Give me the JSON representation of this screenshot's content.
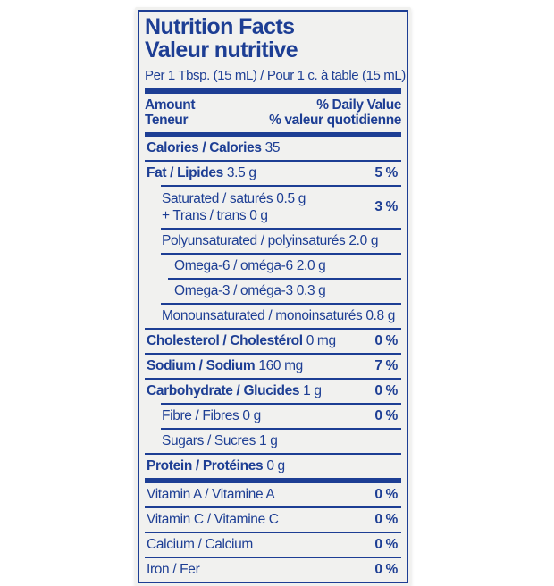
{
  "label": {
    "colors": {
      "blue": "#1d3e94",
      "background": "#f1f1ef",
      "page_background": "#ffffff"
    },
    "header": {
      "title_en": "Nutrition Facts",
      "title_fr": "Valeur nutritive",
      "serving": "Per 1 Tbsp. (15 mL) / Pour 1 c. à table (15 mL)",
      "amount_en": "Amount",
      "amount_fr": "Teneur",
      "daily_value_en": "% Daily Value",
      "daily_value_fr": "% valeur quotidienne"
    },
    "rows": [
      {
        "label": "Calories / Calories",
        "amount": "35",
        "dv": "",
        "level": 0,
        "bold": true
      },
      {
        "label": "Fat / Lipides",
        "amount": "3.5 g",
        "dv": "5 %",
        "level": 0,
        "bold": true
      },
      {
        "line1": "Saturated / saturés 0.5 g",
        "line2": "+ Trans / trans 0 g",
        "dv": "3 %",
        "level": 1,
        "bold": false
      },
      {
        "label": "Polyunsaturated / polyinsaturés 2.0 g",
        "dv": "",
        "level": 1,
        "bold": false
      },
      {
        "label": "Omega-6 / oméga-6 2.0 g",
        "dv": "",
        "level": 2,
        "bold": false
      },
      {
        "label": "Omega-3 / oméga-3 0.3 g",
        "dv": "",
        "level": 2,
        "bold": false
      },
      {
        "label": "Monounsaturated / monoinsaturés 0.8 g",
        "dv": "",
        "level": 1,
        "bold": false
      },
      {
        "label": "Cholesterol / Cholestérol",
        "amount": "0 mg",
        "dv": "0 %",
        "level": 0,
        "bold": true
      },
      {
        "label": "Sodium / Sodium",
        "amount": "160 mg",
        "dv": "7 %",
        "level": 0,
        "bold": true
      },
      {
        "label": "Carbohydrate / Glucides",
        "amount": "1 g",
        "dv": "0 %",
        "level": 0,
        "bold": true
      },
      {
        "label": "Fibre / Fibres 0 g",
        "dv": "0 %",
        "level": 1,
        "bold": false
      },
      {
        "label": "Sugars / Sucres 1 g",
        "dv": "",
        "level": 1,
        "bold": false
      },
      {
        "label": "Protein / Protéines",
        "amount": "0 g",
        "dv": "",
        "level": 0,
        "bold": true
      },
      {
        "label": "Vitamin A / Vitamine A",
        "dv": "0 %",
        "level": 0,
        "bold": false
      },
      {
        "label": "Vitamin C / Vitamine C",
        "dv": "0 %",
        "level": 0,
        "bold": false
      },
      {
        "label": "Calcium / Calcium",
        "dv": "0 %",
        "level": 0,
        "bold": false
      },
      {
        "label": "Iron / Fer",
        "dv": "0 %",
        "level": 0,
        "bold": false
      }
    ]
  }
}
